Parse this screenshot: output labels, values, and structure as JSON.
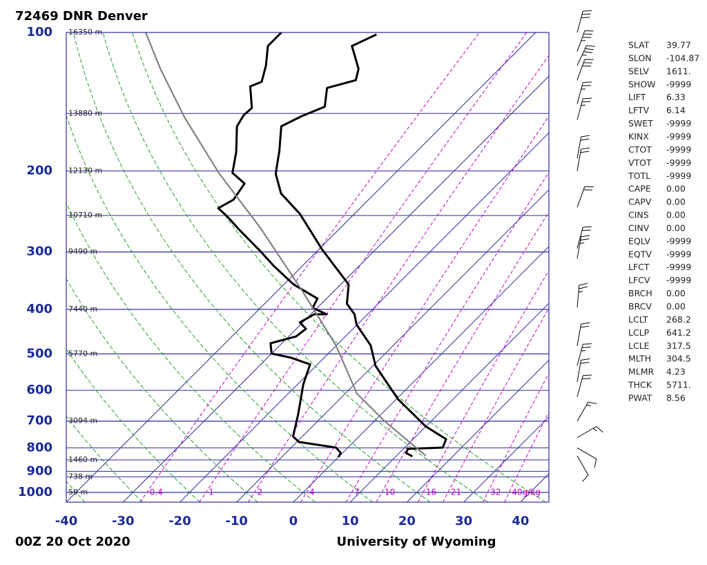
{
  "chart_data": {
    "type": "skewt",
    "title": "72469 DNR Denver",
    "subtitle": "00Z 20 Oct 2020",
    "source": "University of Wyoming",
    "log_y": true,
    "xlim": [
      -40,
      45
    ],
    "ylim": [
      1050,
      100
    ],
    "xticks": [
      -40,
      -30,
      -20,
      -10,
      0,
      10,
      20,
      30,
      40
    ],
    "yticks": [
      100,
      200,
      300,
      400,
      500,
      600,
      700,
      800,
      900,
      1000
    ],
    "height_labels": [
      {
        "value": 100,
        "label": "16350 m"
      },
      {
        "value": 150,
        "label": "13880 m"
      },
      {
        "value": 200,
        "label": "12130 m"
      },
      {
        "value": 250,
        "label": "10710 m"
      },
      {
        "value": 300,
        "label": "9490 m"
      },
      {
        "value": 400,
        "label": "7440 m"
      },
      {
        "value": 500,
        "label": "5770 m"
      },
      {
        "value": 700,
        "label": "3094 m"
      },
      {
        "value": 850,
        "label": "1460 m"
      },
      {
        "value": 925,
        "label": "738 m"
      },
      {
        "value": 1000,
        "label": "59 m"
      }
    ],
    "mixing_ratios": [
      0.4,
      1,
      2,
      4,
      7,
      10,
      16,
      21,
      32,
      {
        "value": 40,
        "label": "40g/kg"
      }
    ],
    "series": [
      {
        "color": "#000000",
        "pressure": [
          835,
          821,
          804,
          799,
          766,
          718,
          627,
          531,
          479,
          432,
          410,
          389,
          353,
          322,
          296,
          266,
          248,
          224,
          203,
          195,
          181,
          160,
          152,
          145,
          132,
          127,
          120,
          107,
          101
        ],
        "values": [
          12.9,
          11.2,
          10.8,
          16.7,
          15.8,
          9.9,
          0.3,
          -9.5,
          -14.0,
          -20.1,
          -22.3,
          -25.5,
          -28.6,
          -34.3,
          -39.5,
          -45.6,
          -49.6,
          -56.5,
          -60.9,
          -62.1,
          -64.3,
          -68.3,
          -66.5,
          -64.1,
          -67.0,
          -63.3,
          -64.8,
          -70.0,
          -67.7
        ]
      },
      {
        "color": "#000000",
        "pressure": [
          838,
          821,
          799,
          777,
          756,
          677,
          582,
          527,
          509,
          499,
          474,
          458,
          441,
          427,
          410,
          410,
          397,
          379,
          353,
          322,
          298,
          270,
          251,
          241,
          231,
          213,
          202,
          182,
          160,
          151,
          146,
          131,
          128,
          118,
          107,
          100
        ],
        "values": [
          0.0,
          -0.3,
          -2.1,
          -9.6,
          -11.6,
          -14.6,
          -19.0,
          -21.3,
          -26.0,
          -30.0,
          -32.0,
          -28.7,
          -28.3,
          -30.5,
          -29.4,
          -27.2,
          -30.8,
          -31.6,
          -38.3,
          -45.0,
          -50.2,
          -57.1,
          -62.0,
          -65.0,
          -63.8,
          -64.7,
          -68.7,
          -71.7,
          -76.1,
          -76.9,
          -76.7,
          -80.8,
          -79.6,
          -81.7,
          -84.8,
          -84.8
        ]
      },
      {
        "color": "#808080",
        "pressure": [
          833,
          700,
          610,
          479,
          363,
          266,
          202,
          153,
          120,
          100
        ],
        "values": [
          15.2,
          1.8,
          -7.9,
          -20.1,
          -35.9,
          -54.1,
          -71.1,
          -86.9,
          -99.7,
          -108.7
        ]
      }
    ],
    "winds": {
      "pressure": [
        100,
        110,
        118,
        127,
        143,
        155,
        188,
        200,
        240,
        295,
        310,
        396,
        480,
        530,
        575,
        620,
        700,
        760,
        800,
        833
      ],
      "direction": [
        15,
        20,
        25,
        20,
        15,
        15,
        10,
        10,
        20,
        15,
        10,
        5,
        10,
        15,
        10,
        15,
        30,
        60,
        120,
        150
      ],
      "speed": [
        30,
        35,
        35,
        30,
        25,
        25,
        20,
        20,
        20,
        20,
        25,
        25,
        20,
        25,
        20,
        20,
        15,
        15,
        10,
        10
      ]
    },
    "indices": [
      {
        "name": "SLAT",
        "value": "39.77"
      },
      {
        "name": "SLON",
        "value": "-104.87"
      },
      {
        "name": "SELV",
        "value": "1611."
      },
      {
        "name": "SHOW",
        "value": "-9999"
      },
      {
        "name": "LIFT",
        "value": "6.33"
      },
      {
        "name": "LFTV",
        "value": "6.14"
      },
      {
        "name": "SWET",
        "value": "-9999"
      },
      {
        "name": "KINX",
        "value": "-9999"
      },
      {
        "name": "CTOT",
        "value": "-9999"
      },
      {
        "name": "VTOT",
        "value": "-9999"
      },
      {
        "name": "TOTL",
        "value": "-9999"
      },
      {
        "name": "CAPE",
        "value": "0.00"
      },
      {
        "name": "CAPV",
        "value": "0.00"
      },
      {
        "name": "CINS",
        "value": "0.00"
      },
      {
        "name": "CINV",
        "value": "0.00"
      },
      {
        "name": "EQLV",
        "value": "-9999"
      },
      {
        "name": "EQTV",
        "value": "-9999"
      },
      {
        "name": "LFCT",
        "value": "-9999"
      },
      {
        "name": "LFCV",
        "value": "-9999"
      },
      {
        "name": "BRCH",
        "value": "0.00"
      },
      {
        "name": "BRCV",
        "value": "0.00"
      },
      {
        "name": "LCLT",
        "value": "268.2"
      },
      {
        "name": "LCLP",
        "value": "641.2"
      },
      {
        "name": "LCLE",
        "value": "317.5"
      },
      {
        "name": "MLTH",
        "value": "304.5"
      },
      {
        "name": "MLMR",
        "value": "4.23"
      },
      {
        "name": "THCK",
        "value": "5711."
      },
      {
        "name": "PWAT",
        "value": "8.56"
      }
    ]
  }
}
